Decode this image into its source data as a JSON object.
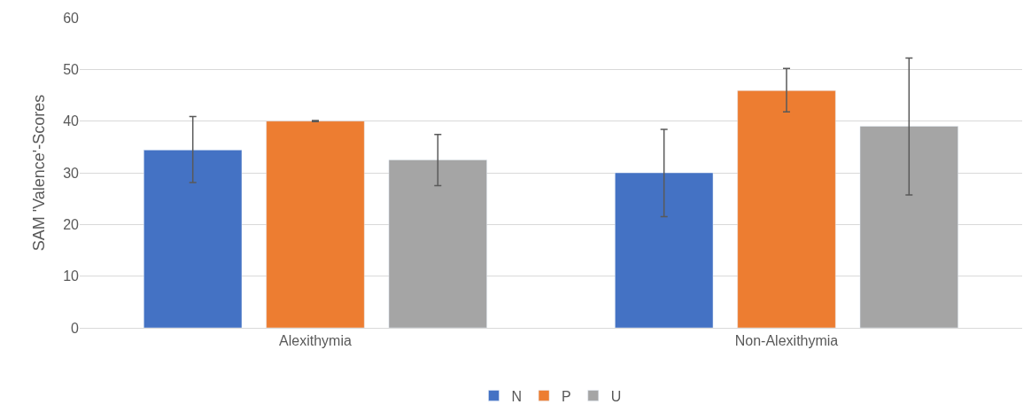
{
  "chart_data": {
    "type": "bar",
    "ylabel": "SAM 'Valence'-Scores",
    "categories": [
      "Alexithymia",
      "Non-Alexithymia"
    ],
    "series": [
      {
        "name": "N",
        "color": "#4472c4",
        "values": [
          34.4,
          30.0
        ],
        "errors": [
          [
            28.1,
            40.9
          ],
          [
            21.5,
            38.4
          ]
        ]
      },
      {
        "name": "P",
        "color": "#ed7d31",
        "values": [
          40.0,
          45.9
        ],
        "errors": [
          [
            39.9,
            40.1
          ],
          [
            41.8,
            50.2
          ]
        ]
      },
      {
        "name": "U",
        "color": "#a5a5a5",
        "values": [
          32.5,
          39.0
        ],
        "errors": [
          [
            27.5,
            37.4
          ],
          [
            25.7,
            52.2
          ]
        ]
      }
    ],
    "ylim": [
      0,
      60
    ],
    "yticks": [
      0,
      10,
      20,
      30,
      40,
      50,
      60
    ],
    "grid": "y",
    "legend": "bottom"
  }
}
